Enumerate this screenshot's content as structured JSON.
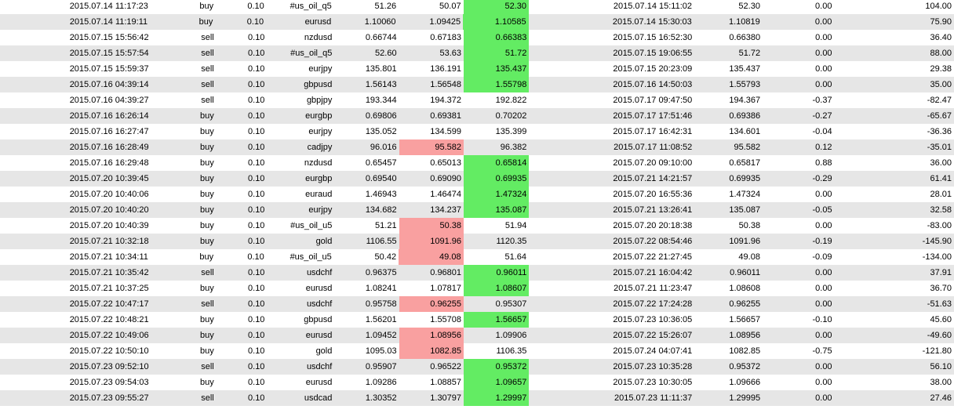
{
  "colors": {
    "profit_highlight": "#63ec63",
    "loss_highlight": "#f9a0a0",
    "alt_row": "#e6e6e6"
  },
  "trades": [
    {
      "open_time": "2015.07.14 11:17:23",
      "type": "buy",
      "size": "0.10",
      "symbol": "#us_oil_q5",
      "open_price": "51.26",
      "sl": "50.07",
      "tp": "52.30",
      "close_time": "2015.07.14 15:11:02",
      "close_price": "52.30",
      "swap": "0.00",
      "profit": "104.00",
      "sl_hit": false,
      "tp_hit": true
    },
    {
      "open_time": "2015.07.14 11:19:11",
      "type": "buy",
      "size": "0.10",
      "symbol": "eurusd",
      "open_price": "1.10060",
      "sl": "1.09425",
      "tp": "1.10585",
      "close_time": "2015.07.14 15:30:03",
      "close_price": "1.10819",
      "swap": "0.00",
      "profit": "75.90",
      "sl_hit": false,
      "tp_hit": true
    },
    {
      "open_time": "2015.07.15 15:56:42",
      "type": "sell",
      "size": "0.10",
      "symbol": "nzdusd",
      "open_price": "0.66744",
      "sl": "0.67183",
      "tp": "0.66383",
      "close_time": "2015.07.15 16:52:30",
      "close_price": "0.66380",
      "swap": "0.00",
      "profit": "36.40",
      "sl_hit": false,
      "tp_hit": true
    },
    {
      "open_time": "2015.07.15 15:57:54",
      "type": "sell",
      "size": "0.10",
      "symbol": "#us_oil_q5",
      "open_price": "52.60",
      "sl": "53.63",
      "tp": "51.72",
      "close_time": "2015.07.15 19:06:55",
      "close_price": "51.72",
      "swap": "0.00",
      "profit": "88.00",
      "sl_hit": false,
      "tp_hit": true
    },
    {
      "open_time": "2015.07.15 15:59:37",
      "type": "sell",
      "size": "0.10",
      "symbol": "eurjpy",
      "open_price": "135.801",
      "sl": "136.191",
      "tp": "135.437",
      "close_time": "2015.07.15 20:23:09",
      "close_price": "135.437",
      "swap": "0.00",
      "profit": "29.38",
      "sl_hit": false,
      "tp_hit": true
    },
    {
      "open_time": "2015.07.16 04:39:14",
      "type": "sell",
      "size": "0.10",
      "symbol": "gbpusd",
      "open_price": "1.56143",
      "sl": "1.56548",
      "tp": "1.55798",
      "close_time": "2015.07.16 14:50:03",
      "close_price": "1.55793",
      "swap": "0.00",
      "profit": "35.00",
      "sl_hit": false,
      "tp_hit": true
    },
    {
      "open_time": "2015.07.16 04:39:27",
      "type": "sell",
      "size": "0.10",
      "symbol": "gbpjpy",
      "open_price": "193.344",
      "sl": "194.372",
      "tp": "192.822",
      "close_time": "2015.07.17 09:47:50",
      "close_price": "194.367",
      "swap": "-0.37",
      "profit": "-82.47",
      "sl_hit": false,
      "tp_hit": false
    },
    {
      "open_time": "2015.07.16 16:26:14",
      "type": "buy",
      "size": "0.10",
      "symbol": "eurgbp",
      "open_price": "0.69806",
      "sl": "0.69381",
      "tp": "0.70202",
      "close_time": "2015.07.17 17:51:46",
      "close_price": "0.69386",
      "swap": "-0.27",
      "profit": "-65.67",
      "sl_hit": false,
      "tp_hit": false
    },
    {
      "open_time": "2015.07.16 16:27:47",
      "type": "buy",
      "size": "0.10",
      "symbol": "eurjpy",
      "open_price": "135.052",
      "sl": "134.599",
      "tp": "135.399",
      "close_time": "2015.07.17 16:42:31",
      "close_price": "134.601",
      "swap": "-0.04",
      "profit": "-36.36",
      "sl_hit": false,
      "tp_hit": false
    },
    {
      "open_time": "2015.07.16 16:28:49",
      "type": "buy",
      "size": "0.10",
      "symbol": "cadjpy",
      "open_price": "96.016",
      "sl": "95.582",
      "tp": "96.382",
      "close_time": "2015.07.17 11:08:52",
      "close_price": "95.582",
      "swap": "0.12",
      "profit": "-35.01",
      "sl_hit": true,
      "tp_hit": false
    },
    {
      "open_time": "2015.07.16 16:29:48",
      "type": "buy",
      "size": "0.10",
      "symbol": "nzdusd",
      "open_price": "0.65457",
      "sl": "0.65013",
      "tp": "0.65814",
      "close_time": "2015.07.20 09:10:00",
      "close_price": "0.65817",
      "swap": "0.88",
      "profit": "36.00",
      "sl_hit": false,
      "tp_hit": true
    },
    {
      "open_time": "2015.07.20 10:39:45",
      "type": "buy",
      "size": "0.10",
      "symbol": "eurgbp",
      "open_price": "0.69540",
      "sl": "0.69090",
      "tp": "0.69935",
      "close_time": "2015.07.21 14:21:57",
      "close_price": "0.69935",
      "swap": "-0.29",
      "profit": "61.41",
      "sl_hit": false,
      "tp_hit": true
    },
    {
      "open_time": "2015.07.20 10:40:06",
      "type": "buy",
      "size": "0.10",
      "symbol": "euraud",
      "open_price": "1.46943",
      "sl": "1.46474",
      "tp": "1.47324",
      "close_time": "2015.07.20 16:55:36",
      "close_price": "1.47324",
      "swap": "0.00",
      "profit": "28.01",
      "sl_hit": false,
      "tp_hit": true
    },
    {
      "open_time": "2015.07.20 10:40:20",
      "type": "buy",
      "size": "0.10",
      "symbol": "eurjpy",
      "open_price": "134.682",
      "sl": "134.237",
      "tp": "135.087",
      "close_time": "2015.07.21 13:26:41",
      "close_price": "135.087",
      "swap": "-0.05",
      "profit": "32.58",
      "sl_hit": false,
      "tp_hit": true
    },
    {
      "open_time": "2015.07.20 10:40:39",
      "type": "buy",
      "size": "0.10",
      "symbol": "#us_oil_u5",
      "open_price": "51.21",
      "sl": "50.38",
      "tp": "51.94",
      "close_time": "2015.07.20 20:18:38",
      "close_price": "50.38",
      "swap": "0.00",
      "profit": "-83.00",
      "sl_hit": true,
      "tp_hit": false
    },
    {
      "open_time": "2015.07.21 10:32:18",
      "type": "buy",
      "size": "0.10",
      "symbol": "gold",
      "open_price": "1106.55",
      "sl": "1091.96",
      "tp": "1120.35",
      "close_time": "2015.07.22 08:54:46",
      "close_price": "1091.96",
      "swap": "-0.19",
      "profit": "-145.90",
      "sl_hit": true,
      "tp_hit": false
    },
    {
      "open_time": "2015.07.21 10:34:11",
      "type": "buy",
      "size": "0.10",
      "symbol": "#us_oil_u5",
      "open_price": "50.42",
      "sl": "49.08",
      "tp": "51.64",
      "close_time": "2015.07.22 21:27:45",
      "close_price": "49.08",
      "swap": "-0.09",
      "profit": "-134.00",
      "sl_hit": true,
      "tp_hit": false
    },
    {
      "open_time": "2015.07.21 10:35:42",
      "type": "sell",
      "size": "0.10",
      "symbol": "usdchf",
      "open_price": "0.96375",
      "sl": "0.96801",
      "tp": "0.96011",
      "close_time": "2015.07.21 16:04:42",
      "close_price": "0.96011",
      "swap": "0.00",
      "profit": "37.91",
      "sl_hit": false,
      "tp_hit": true
    },
    {
      "open_time": "2015.07.21 10:37:25",
      "type": "buy",
      "size": "0.10",
      "symbol": "eurusd",
      "open_price": "1.08241",
      "sl": "1.07817",
      "tp": "1.08607",
      "close_time": "2015.07.21 11:23:47",
      "close_price": "1.08608",
      "swap": "0.00",
      "profit": "36.70",
      "sl_hit": false,
      "tp_hit": true
    },
    {
      "open_time": "2015.07.22 10:47:17",
      "type": "sell",
      "size": "0.10",
      "symbol": "usdchf",
      "open_price": "0.95758",
      "sl": "0.96255",
      "tp": "0.95307",
      "close_time": "2015.07.22 17:24:28",
      "close_price": "0.96255",
      "swap": "0.00",
      "profit": "-51.63",
      "sl_hit": true,
      "tp_hit": false
    },
    {
      "open_time": "2015.07.22 10:48:21",
      "type": "buy",
      "size": "0.10",
      "symbol": "gbpusd",
      "open_price": "1.56201",
      "sl": "1.55708",
      "tp": "1.56657",
      "close_time": "2015.07.23 10:36:05",
      "close_price": "1.56657",
      "swap": "-0.10",
      "profit": "45.60",
      "sl_hit": false,
      "tp_hit": true
    },
    {
      "open_time": "2015.07.22 10:49:06",
      "type": "buy",
      "size": "0.10",
      "symbol": "eurusd",
      "open_price": "1.09452",
      "sl": "1.08956",
      "tp": "1.09906",
      "close_time": "2015.07.22 15:26:07",
      "close_price": "1.08956",
      "swap": "0.00",
      "profit": "-49.60",
      "sl_hit": true,
      "tp_hit": false
    },
    {
      "open_time": "2015.07.22 10:50:10",
      "type": "buy",
      "size": "0.10",
      "symbol": "gold",
      "open_price": "1095.03",
      "sl": "1082.85",
      "tp": "1106.35",
      "close_time": "2015.07.24 04:07:41",
      "close_price": "1082.85",
      "swap": "-0.75",
      "profit": "-121.80",
      "sl_hit": true,
      "tp_hit": false
    },
    {
      "open_time": "2015.07.23 09:52:10",
      "type": "sell",
      "size": "0.10",
      "symbol": "usdchf",
      "open_price": "0.95907",
      "sl": "0.96522",
      "tp": "0.95372",
      "close_time": "2015.07.23 10:35:28",
      "close_price": "0.95372",
      "swap": "0.00",
      "profit": "56.10",
      "sl_hit": false,
      "tp_hit": true
    },
    {
      "open_time": "2015.07.23 09:54:03",
      "type": "buy",
      "size": "0.10",
      "symbol": "eurusd",
      "open_price": "1.09286",
      "sl": "1.08857",
      "tp": "1.09657",
      "close_time": "2015.07.23 10:30:05",
      "close_price": "1.09666",
      "swap": "0.00",
      "profit": "38.00",
      "sl_hit": false,
      "tp_hit": true
    },
    {
      "open_time": "2015.07.23 09:55:27",
      "type": "sell",
      "size": "0.10",
      "symbol": "usdcad",
      "open_price": "1.30352",
      "sl": "1.30797",
      "tp": "1.29997",
      "close_time": "2015.07.23 11:11:37",
      "close_price": "1.29995",
      "swap": "0.00",
      "profit": "27.46",
      "sl_hit": false,
      "tp_hit": true
    }
  ]
}
